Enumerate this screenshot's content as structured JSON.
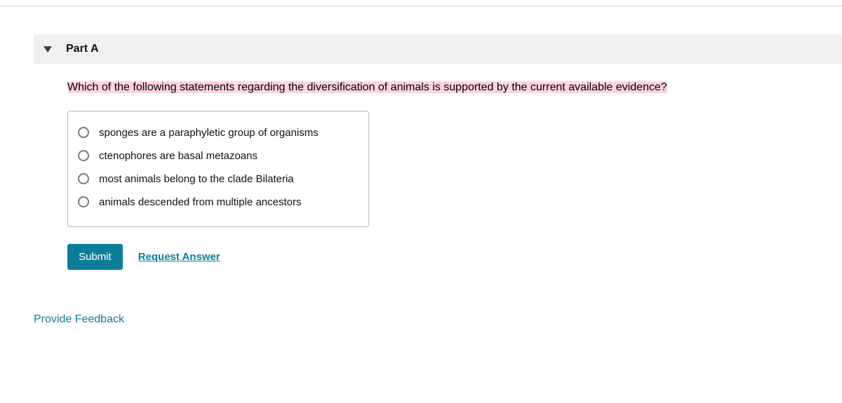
{
  "colors": {
    "header_bg": "#f0f0f0",
    "triangle": "#404040",
    "highlight_bg": "#ffd3e3",
    "options_border": "#b8b8b8",
    "radio_border": "#7a7a7a",
    "primary": "#0d7e99",
    "white": "#ffffff",
    "text": "#111111",
    "top_border": "#d0d0d0"
  },
  "header": {
    "part_label": "Part A"
  },
  "question": {
    "prompt": "Which of the following statements regarding the diversification of animals is supported by the current available evidence?",
    "options": [
      {
        "text": "sponges are a paraphyletic group of organisms"
      },
      {
        "text": "ctenophores are basal metazoans"
      },
      {
        "text": "most animals belong to the clade Bilateria"
      },
      {
        "text": "animals descended from multiple ancestors"
      }
    ]
  },
  "actions": {
    "submit_label": "Submit",
    "request_label": "Request Answer"
  },
  "feedback": {
    "link_label": "Provide Feedback"
  }
}
